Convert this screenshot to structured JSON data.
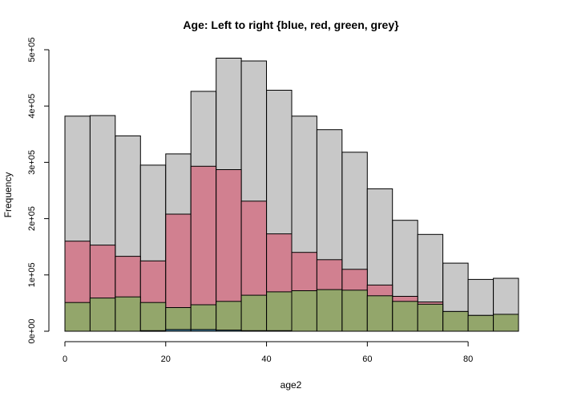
{
  "chart_data": {
    "type": "bar",
    "title": "Age: Left to right {blue, red, green, grey}",
    "xlabel": "age2",
    "ylabel": "Frequency",
    "xlim": [
      0,
      90
    ],
    "ylim": [
      0,
      500000
    ],
    "x_ticks": [
      0,
      20,
      40,
      60,
      80
    ],
    "x_tick_labels": [
      "0",
      "20",
      "40",
      "60",
      "80"
    ],
    "y_ticks": [
      0,
      100000,
      200000,
      300000,
      400000,
      500000
    ],
    "y_tick_labels": [
      "0e+00",
      "1e+05",
      "2e+05",
      "3e+05",
      "4e+05",
      "5e+05"
    ],
    "bin_edges": [
      0,
      5,
      10,
      15,
      20,
      25,
      30,
      35,
      40,
      45,
      50,
      55,
      60,
      65,
      70,
      75,
      80,
      85,
      90
    ],
    "grid": false,
    "overlay": true,
    "series": [
      {
        "color": "#c8c8c8",
        "values": [
          382000,
          383000,
          347000,
          295000,
          315000,
          426000,
          485000,
          480000,
          428000,
          382000,
          358000,
          318000,
          253000,
          197000,
          172000,
          121000,
          92000,
          94000
        ]
      },
      {
        "color": "#d18090",
        "values": [
          160000,
          153000,
          133000,
          125000,
          208000,
          293000,
          287000,
          231000,
          173000,
          140000,
          127000,
          110000,
          82000,
          62000,
          52000,
          35000,
          28000,
          28000
        ]
      },
      {
        "color": "#93a66b",
        "values": [
          51000,
          59000,
          61000,
          51000,
          42000,
          47000,
          53000,
          64000,
          70000,
          72000,
          74000,
          73000,
          63000,
          53000,
          48000,
          35000,
          28000,
          30000
        ]
      },
      {
        "color": "#3f7fa0",
        "values": [
          0,
          0,
          0,
          1000,
          3000,
          3000,
          2000,
          1000,
          1000,
          0,
          0,
          0,
          0,
          0,
          0,
          0,
          0,
          0
        ]
      }
    ]
  }
}
